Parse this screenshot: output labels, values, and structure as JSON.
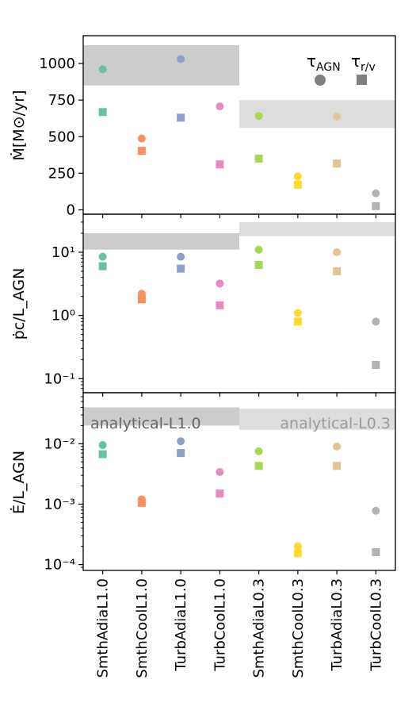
{
  "chart_data": {
    "type": "scatter",
    "categories": [
      "SmthAdiaL1.0",
      "SmthCoolL1.0",
      "TurbAdiaL1.0",
      "TurbCoolL1.0",
      "SmthAdiaL0.3",
      "SmthCoolL0.3",
      "TurbAdiaL0.3",
      "TurbCoolL0.3"
    ],
    "colors": [
      "#66c2a5",
      "#fc8d62",
      "#8da0cb",
      "#e78ac3",
      "#a6d854",
      "#ffd92f",
      "#e5c494",
      "#b3b3b3"
    ],
    "band_colors": {
      "L1.0": "#cccccc",
      "L0.3": "#dddddd"
    },
    "legend": {
      "placement": "top-right",
      "entries": [
        {
          "name": "τ_AGN",
          "base": "τ",
          "sub": "AGN",
          "marker": "circle",
          "color": "#808080"
        },
        {
          "name": "τ_r/v",
          "base": "τ",
          "sub": "r/v",
          "marker": "square",
          "color": "#808080"
        }
      ]
    },
    "band_labels": [
      "analytical-L1.0",
      "analytical-L0.3"
    ],
    "panels": [
      {
        "ylabel": "Ṁ[M⊙/yr]",
        "scale": "linear",
        "ylim": [
          -30,
          1190
        ],
        "yticks": [
          0,
          250,
          500,
          750,
          1000
        ],
        "ytick_labels": [
          "0",
          "250",
          "500",
          "750",
          "1000"
        ],
        "bands": [
          {
            "group": "L1.0",
            "range": [
              850,
              1125
            ]
          },
          {
            "group": "L0.3",
            "range": [
              560,
              750
            ]
          }
        ],
        "series": [
          {
            "name": "τ_AGN",
            "marker": "circle",
            "values": [
              960,
              487,
              1030,
              707,
              642,
              228,
              637,
              113
            ]
          },
          {
            "name": "τ_r/v",
            "marker": "square",
            "values": [
              668,
              403,
              630,
              310,
              350,
              172,
              316,
              25
            ]
          }
        ]
      },
      {
        "ylabel": "ṗc/L_AGN",
        "scale": "log",
        "ylim": [
          0.06,
          40
        ],
        "yticks": [
          0.1,
          1,
          10
        ],
        "ytick_labels": [
          "10⁻¹",
          "10⁰",
          "10¹"
        ],
        "bands": [
          {
            "group": "L1.0",
            "range": [
              11,
              20
            ]
          },
          {
            "group": "L0.3",
            "range": [
              18,
              30
            ]
          }
        ],
        "series": [
          {
            "name": "τ_AGN",
            "marker": "circle",
            "values": [
              8.5,
              2.2,
              8.5,
              3.2,
              11,
              1.1,
              10,
              0.8
            ]
          },
          {
            "name": "τ_r/v",
            "marker": "square",
            "values": [
              6,
              1.8,
              5.5,
              1.45,
              6.3,
              0.8,
              5,
              0.165
            ]
          }
        ]
      },
      {
        "ylabel": "Ė/L_AGN",
        "scale": "log",
        "ylim": [
          8e-05,
          0.07
        ],
        "yticks": [
          0.0001,
          0.001,
          0.01
        ],
        "ytick_labels": [
          "10⁻⁴",
          "10⁻³",
          "10⁻²"
        ],
        "bands": [
          {
            "group": "L1.0",
            "range": [
              0.02,
              0.04
            ]
          },
          {
            "group": "L0.3",
            "range": [
              0.017,
              0.038
            ]
          }
        ],
        "series": [
          {
            "name": "τ_AGN",
            "marker": "circle",
            "values": [
              0.0095,
              0.0012,
              0.011,
              0.0034,
              0.0075,
              0.0002,
              0.009,
              0.00078
            ]
          },
          {
            "name": "τ_r/v",
            "marker": "square",
            "values": [
              0.0067,
              0.00105,
              0.007,
              0.0015,
              0.0043,
              0.000155,
              0.0043,
              0.00016
            ]
          }
        ]
      }
    ]
  }
}
